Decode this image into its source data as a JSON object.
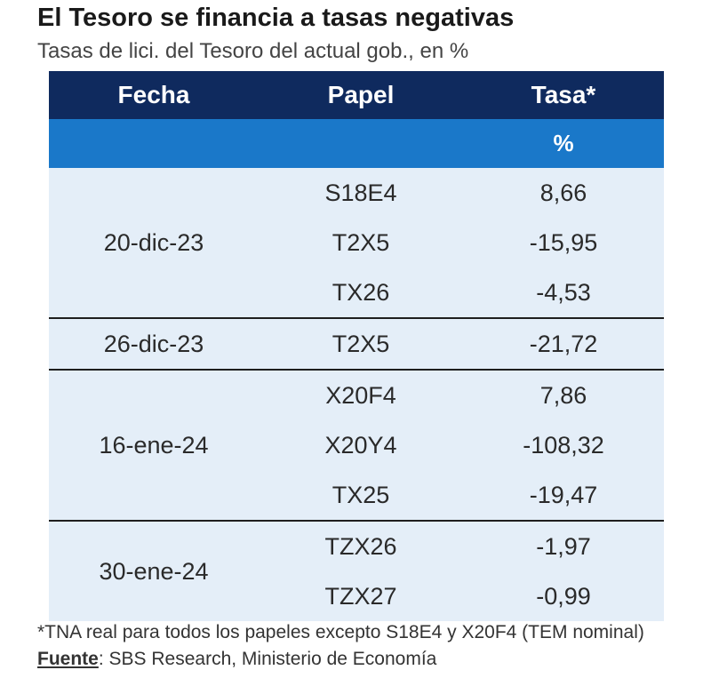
{
  "header": {
    "title": "El Tesoro se financia a tasas negativas",
    "subtitle": "Tasas de lici. del Tesoro del actual gob., en %"
  },
  "chart_data": {
    "type": "table",
    "columns": [
      "Fecha",
      "Papel",
      "Tasa*"
    ],
    "unit_row": [
      "",
      "",
      "%"
    ],
    "groups": [
      {
        "fecha": "20-dic-23",
        "rows": [
          {
            "papel": "S18E4",
            "tasa": "8,66"
          },
          {
            "papel": "T2X5",
            "tasa": "-15,95"
          },
          {
            "papel": "TX26",
            "tasa": "-4,53"
          }
        ]
      },
      {
        "fecha": "26-dic-23",
        "rows": [
          {
            "papel": "T2X5",
            "tasa": "-21,72"
          }
        ]
      },
      {
        "fecha": "16-ene-24",
        "rows": [
          {
            "papel": "X20F4",
            "tasa": "7,86"
          },
          {
            "papel": "X20Y4",
            "tasa": "-108,32"
          },
          {
            "papel": "TX25",
            "tasa": "-19,47"
          }
        ]
      },
      {
        "fecha": "30-ene-24",
        "rows": [
          {
            "papel": "TZX26",
            "tasa": "-1,97"
          },
          {
            "papel": "TZX27",
            "tasa": "-0,99"
          }
        ]
      }
    ]
  },
  "footnote": {
    "text": "*TNA real para todos los papeles excepto S18E4 y X20F4 (TEM nominal) ",
    "source_label": "Fuente",
    "source_text": ": SBS Research, Ministerio de Economía"
  }
}
